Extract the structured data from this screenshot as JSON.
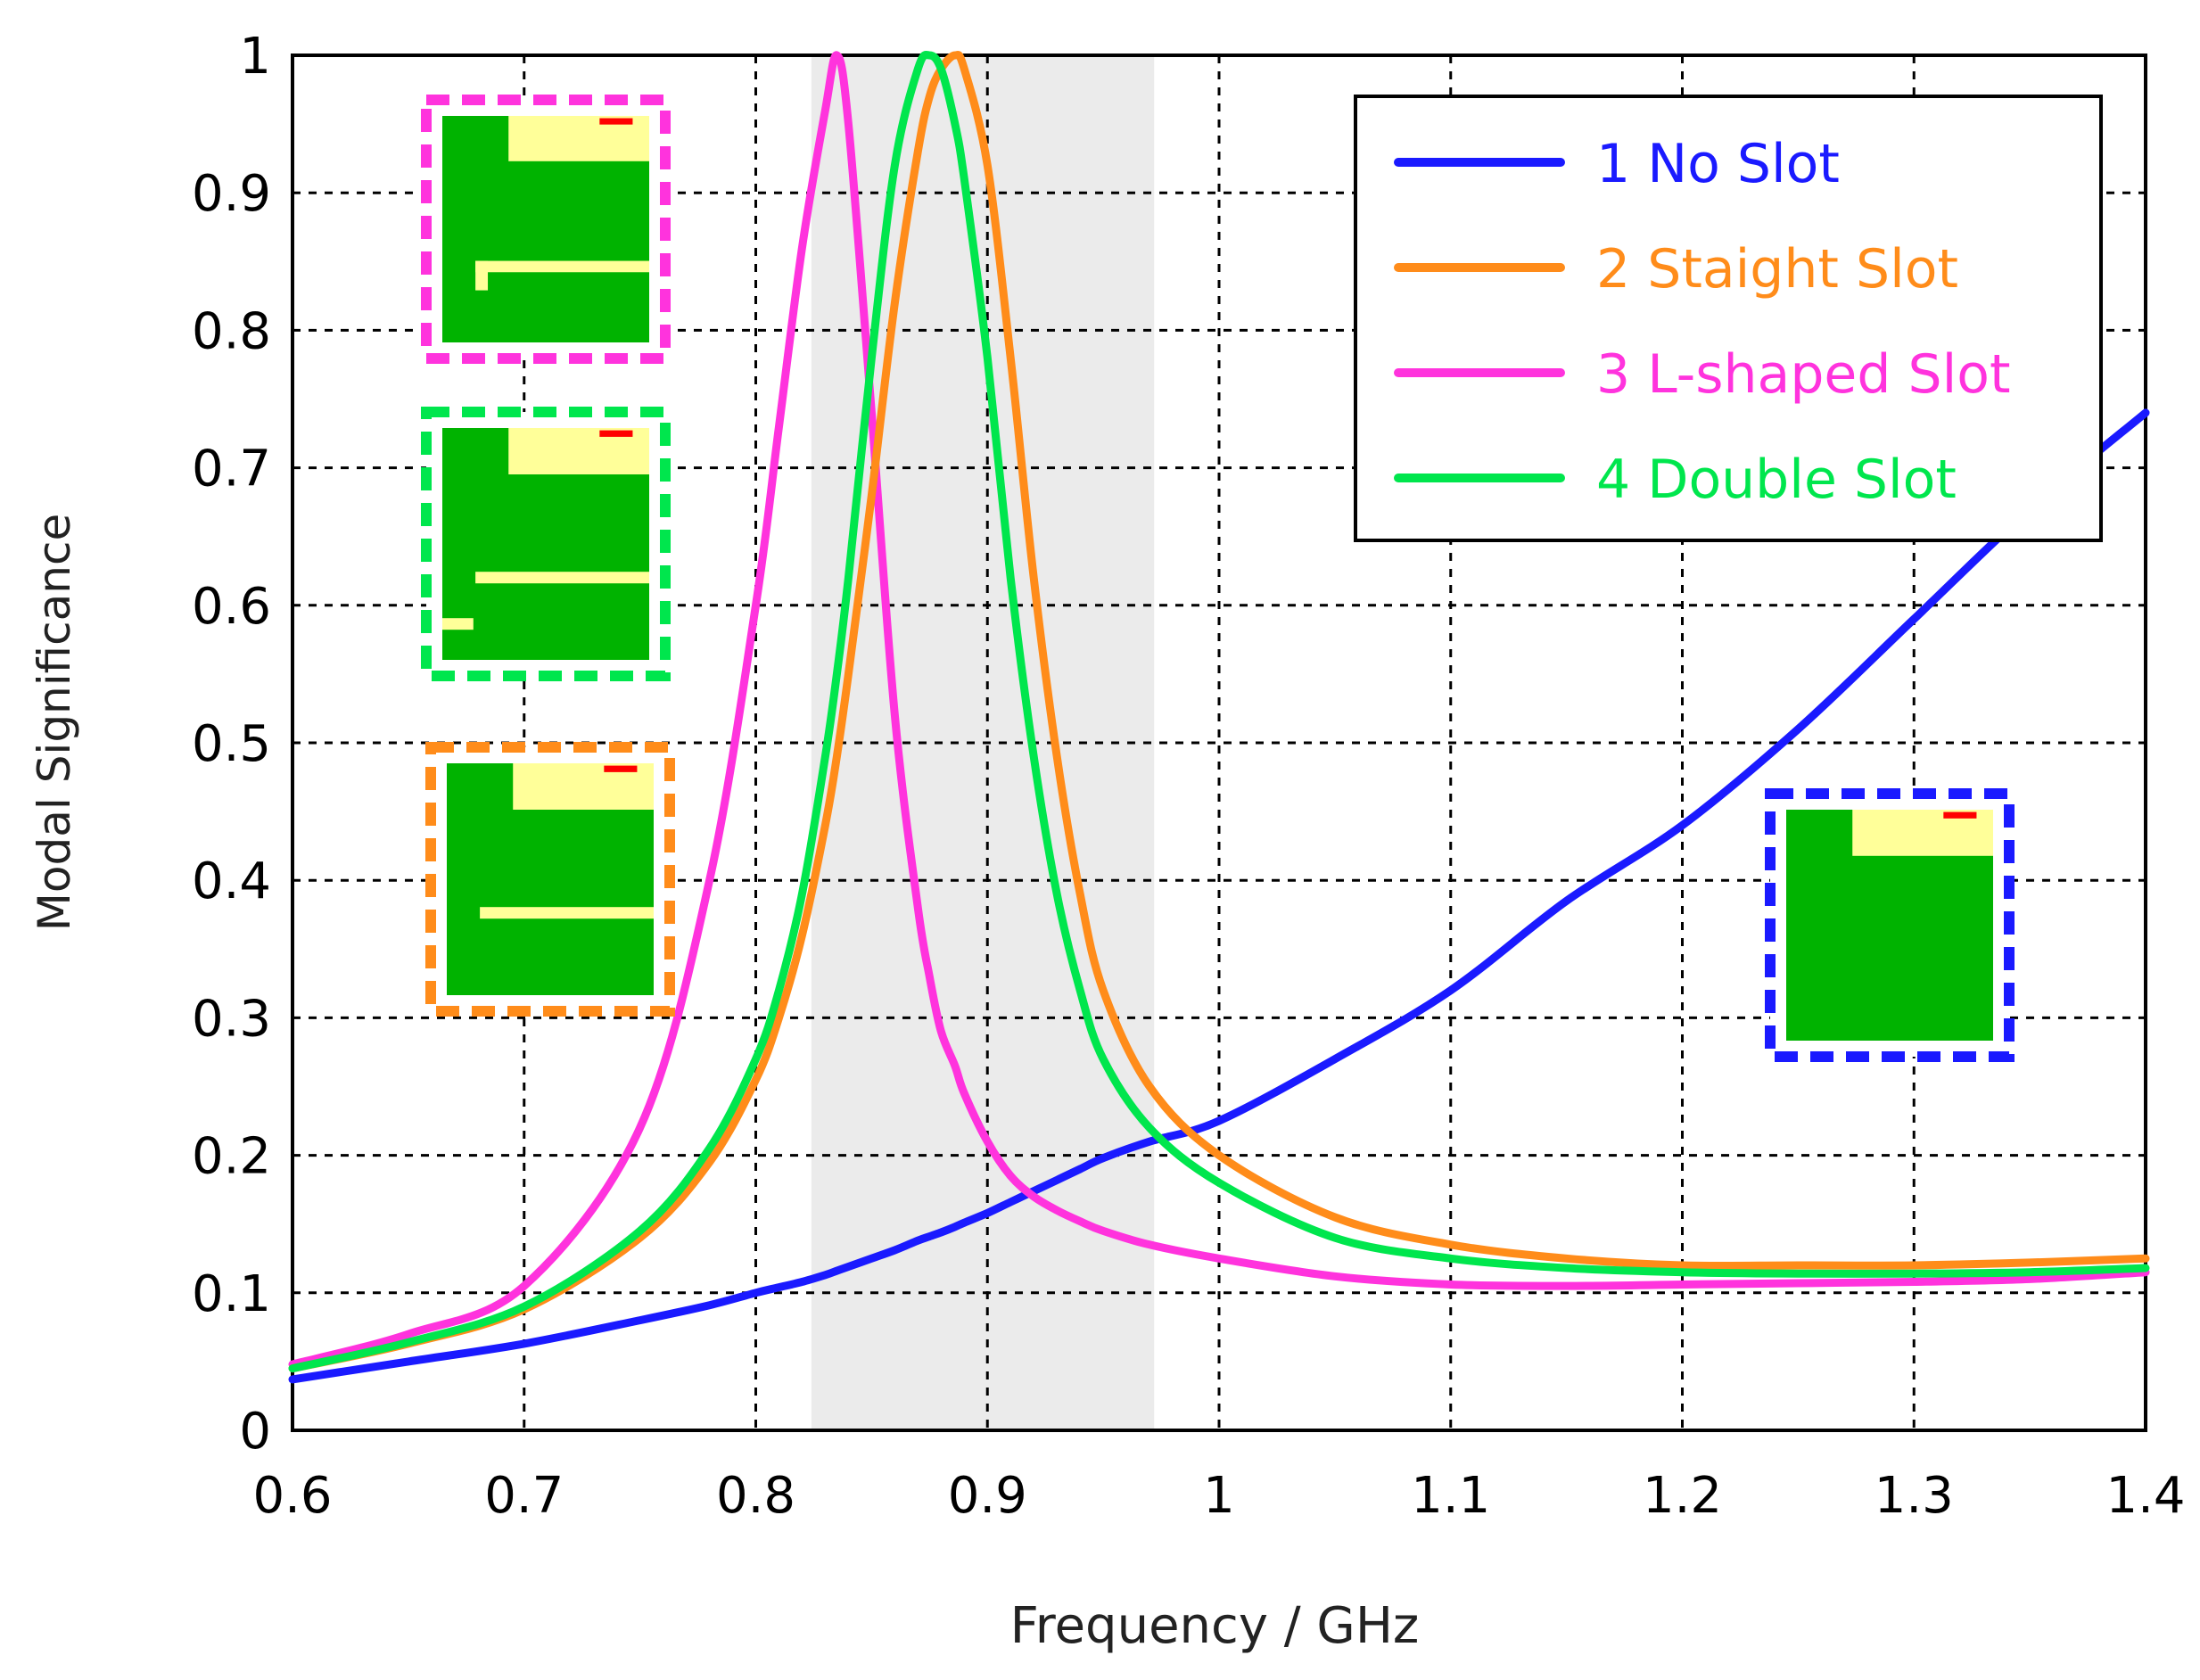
{
  "chart_data": {
    "type": "line",
    "title": "",
    "xlabel": "Frequency / GHz",
    "ylabel": "Modal Significance",
    "xlim": [
      0.6,
      1.4
    ],
    "ylim": [
      0,
      1
    ],
    "grid": true,
    "x_ticks": [
      "0.6",
      "0.7",
      "0.8",
      "0.9",
      "1",
      "1.1",
      "1.2",
      "1.3",
      "1.4"
    ],
    "y_ticks": [
      "0",
      "0.1",
      "0.2",
      "0.3",
      "0.4",
      "0.5",
      "0.6",
      "0.7",
      "0.8",
      "0.9",
      "1"
    ],
    "highlight_band": [
      0.824,
      0.972
    ],
    "legend_position": "top-right",
    "x": [
      0.6,
      0.65,
      0.7,
      0.75,
      0.78,
      0.8,
      0.81,
      0.82,
      0.83,
      0.835,
      0.84,
      0.85,
      0.86,
      0.87,
      0.875,
      0.88,
      0.886,
      0.89,
      0.9,
      0.91,
      0.92,
      0.93,
      0.94,
      0.95,
      0.97,
      1.0,
      1.05,
      1.1,
      1.15,
      1.2,
      1.25,
      1.3,
      1.35,
      1.4
    ],
    "series": [
      {
        "name": "1 No Slot",
        "color": "#1a1aff",
        "values": [
          0.037,
          0.05,
          0.063,
          0.08,
          0.091,
          0.1,
          0.104,
          0.108,
          0.113,
          0.116,
          0.119,
          0.125,
          0.131,
          0.138,
          0.141,
          0.144,
          0.148,
          0.151,
          0.158,
          0.166,
          0.174,
          0.182,
          0.19,
          0.198,
          0.21,
          0.225,
          0.27,
          0.32,
          0.385,
          0.44,
          0.51,
          0.59,
          0.67,
          0.74
        ]
      },
      {
        "name": "2 Staight Slot",
        "color": "#ff8c1a",
        "values": [
          0.045,
          0.063,
          0.088,
          0.14,
          0.195,
          0.255,
          0.3,
          0.36,
          0.44,
          0.49,
          0.55,
          0.68,
          0.82,
          0.93,
          0.97,
          0.99,
          1.0,
          0.99,
          0.92,
          0.78,
          0.62,
          0.49,
          0.39,
          0.32,
          0.25,
          0.2,
          0.155,
          0.135,
          0.125,
          0.12,
          0.12,
          0.12,
          0.122,
          0.125
        ]
      },
      {
        "name": "3 L-shaped Slot",
        "color": "#ff33dd",
        "values": [
          0.048,
          0.07,
          0.105,
          0.22,
          0.4,
          0.6,
          0.73,
          0.86,
          0.96,
          1.0,
          0.95,
          0.74,
          0.52,
          0.38,
          0.33,
          0.29,
          0.265,
          0.245,
          0.21,
          0.185,
          0.17,
          0.16,
          0.152,
          0.145,
          0.135,
          0.125,
          0.112,
          0.106,
          0.105,
          0.106,
          0.107,
          0.108,
          0.11,
          0.115
        ]
      },
      {
        "name": "4 Double Slot",
        "color": "#00e64d",
        "values": [
          0.045,
          0.064,
          0.09,
          0.145,
          0.205,
          0.27,
          0.32,
          0.39,
          0.49,
          0.55,
          0.62,
          0.78,
          0.92,
          0.99,
          1.0,
          0.99,
          0.95,
          0.91,
          0.78,
          0.62,
          0.49,
          0.39,
          0.32,
          0.27,
          0.22,
          0.18,
          0.14,
          0.125,
          0.118,
          0.115,
          0.114,
          0.114,
          0.115,
          0.118
        ]
      }
    ]
  },
  "insets": [
    {
      "name": "l-shaped-slot-inset",
      "frame_color": "#ff33dd",
      "slot": "l-shaped"
    },
    {
      "name": "double-slot-inset",
      "frame_color": "#00e64d",
      "slot": "double"
    },
    {
      "name": "straight-slot-inset",
      "frame_color": "#ff8c1a",
      "slot": "straight"
    },
    {
      "name": "no-slot-inset",
      "frame_color": "#1a1aff",
      "slot": "none"
    }
  ],
  "colors": {
    "board": "#00b300",
    "patch": "#ffff99",
    "feed": "#ff0000",
    "band": "#ebebeb"
  }
}
